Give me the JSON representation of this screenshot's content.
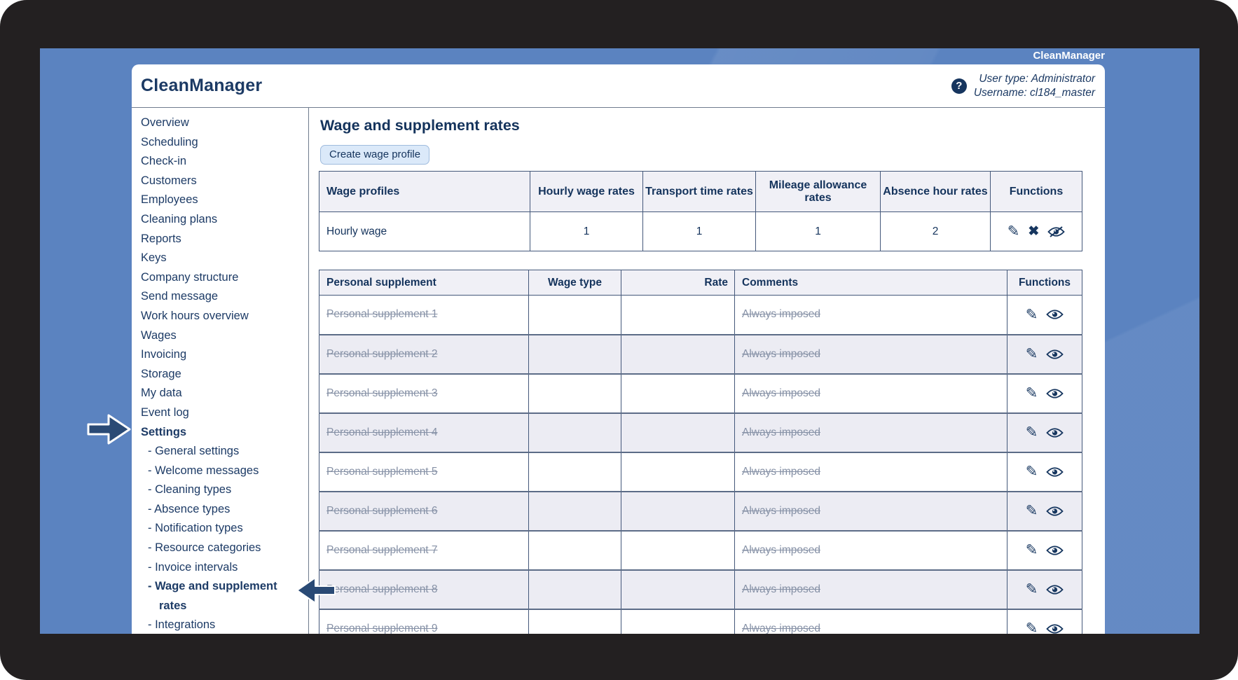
{
  "titlebar": {
    "label": "CleanManager"
  },
  "header": {
    "logo": "CleanManager",
    "help_icon": "?",
    "user_type": "User type: Administrator",
    "username": "Username: cl184_master"
  },
  "sidebar": {
    "items": [
      {
        "label": "Overview"
      },
      {
        "label": "Scheduling"
      },
      {
        "label": "Check-in"
      },
      {
        "label": "Customers"
      },
      {
        "label": "Employees"
      },
      {
        "label": "Cleaning plans"
      },
      {
        "label": "Reports"
      },
      {
        "label": "Keys"
      },
      {
        "label": "Company structure"
      },
      {
        "label": "Send message"
      },
      {
        "label": "Work hours overview"
      },
      {
        "label": "Wages"
      },
      {
        "label": "Invoicing"
      },
      {
        "label": "Storage"
      },
      {
        "label": "My data"
      },
      {
        "label": "Event log"
      },
      {
        "label": "Settings",
        "bold": true,
        "annotated": true
      },
      {
        "label": "General settings",
        "sub": true
      },
      {
        "label": "Welcome messages",
        "sub": true
      },
      {
        "label": "Cleaning types",
        "sub": true
      },
      {
        "label": "Absence types",
        "sub": true
      },
      {
        "label": "Notification types",
        "sub": true
      },
      {
        "label": "Resource categories",
        "sub": true
      },
      {
        "label": "Invoice intervals",
        "sub": true
      },
      {
        "label": "Wage and supplement rates",
        "sub": true,
        "bold": true,
        "annotated": true
      },
      {
        "label": "Integrations",
        "sub": true
      }
    ],
    "sub_prefix": "- "
  },
  "main": {
    "title": "Wage and supplement rates",
    "create_button": "Create wage profile",
    "wage_profiles_table": {
      "headers": [
        "Wage profiles",
        "Hourly wage rates",
        "Transport time rates",
        "Mileage allowance rates",
        "Absence hour rates",
        "Functions"
      ],
      "rows": [
        {
          "name": "Hourly wage",
          "hourly_wage_rates": "1",
          "transport_time_rates": "1",
          "mileage_allowance_rates": "1",
          "absence_hour_rates": "2"
        }
      ],
      "row_function_icons": [
        "edit",
        "delete",
        "hide"
      ]
    },
    "personal_supplement_table": {
      "headers": [
        "Personal supplement",
        "Wage type",
        "Rate",
        "Comments",
        "Functions"
      ],
      "rows": [
        {
          "name": "Personal supplement 1",
          "wage_type": "",
          "rate": "",
          "comments": "Always imposed",
          "struck": true
        },
        {
          "name": "Personal supplement 2",
          "wage_type": "",
          "rate": "",
          "comments": "Always imposed",
          "struck": true
        },
        {
          "name": "Personal supplement 3",
          "wage_type": "",
          "rate": "",
          "comments": "Always imposed",
          "struck": true
        },
        {
          "name": "Personal supplement 4",
          "wage_type": "",
          "rate": "",
          "comments": "Always imposed",
          "struck": true
        },
        {
          "name": "Personal supplement 5",
          "wage_type": "",
          "rate": "",
          "comments": "Always imposed",
          "struck": true
        },
        {
          "name": "Personal supplement 6",
          "wage_type": "",
          "rate": "",
          "comments": "Always imposed",
          "struck": true
        },
        {
          "name": "Personal supplement 7",
          "wage_type": "",
          "rate": "",
          "comments": "Always imposed",
          "struck": true
        },
        {
          "name": "Personal supplement 8",
          "wage_type": "",
          "rate": "",
          "comments": "Always imposed",
          "struck": true
        },
        {
          "name": "Personal supplement 9",
          "wage_type": "",
          "rate": "",
          "comments": "Always imposed",
          "struck": true
        }
      ],
      "row_function_icons": [
        "edit",
        "show"
      ]
    }
  },
  "icon_glyphs": {
    "edit": "✎",
    "delete": "✖"
  },
  "colors": {
    "bezel": "#232021",
    "desktop_blue": "#5b83c0",
    "text_navy": "#14335c",
    "table_border": "#44587a",
    "header_fill": "#f0f0f6",
    "alt_row_fill": "#ececf3",
    "struck_text": "#8691a6",
    "button_fill": "#dbe9f9",
    "button_border": "#9fbbdd",
    "annotation_arrow": "#2a4a75"
  }
}
